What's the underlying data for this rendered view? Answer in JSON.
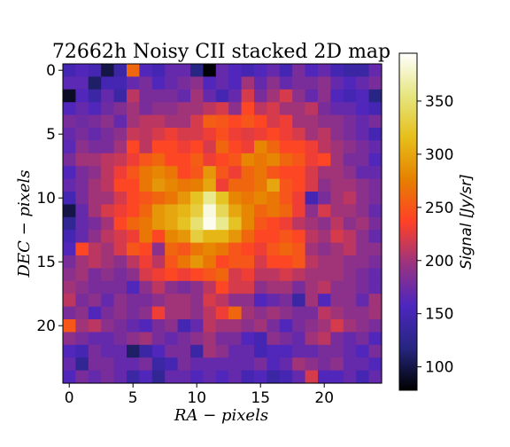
{
  "chart_data": {
    "type": "heatmap",
    "title": "72662h Noisy CII stacked 2D map",
    "xlabel": "RA − pixels",
    "ylabel": "DEC − pixels",
    "colorbar_label": "Signal [Jy/sr]",
    "colormap": "CMRmap",
    "grid": false,
    "nx": 25,
    "ny": 25,
    "xticks": [
      0,
      5,
      10,
      15,
      20
    ],
    "yticks": [
      0,
      5,
      10,
      15,
      20
    ],
    "colorbar_range": [
      78,
      395
    ],
    "colorbar_ticks": [
      100,
      150,
      200,
      250,
      300,
      350
    ],
    "peak": {
      "x": 11.5,
      "y": 11.5,
      "value": 390
    },
    "values": [
      [
        150,
        160,
        150,
        100,
        140,
        260,
        160,
        150,
        170,
        170,
        120,
        80,
        170,
        160,
        150,
        160,
        170,
        150,
        180,
        160,
        170,
        150,
        140,
        140,
        170
      ],
      [
        165,
        165,
        110,
        150,
        150,
        170,
        180,
        160,
        170,
        180,
        190,
        160,
        170,
        160,
        200,
        170,
        190,
        170,
        180,
        180,
        190,
        170,
        160,
        170,
        180
      ],
      [
        90,
        160,
        140,
        170,
        140,
        210,
        180,
        180,
        180,
        170,
        200,
        170,
        150,
        170,
        220,
        180,
        200,
        220,
        190,
        170,
        190,
        160,
        150,
        160,
        120
      ],
      [
        160,
        170,
        160,
        175,
        185,
        200,
        180,
        190,
        190,
        200,
        200,
        210,
        220,
        190,
        240,
        210,
        220,
        200,
        200,
        210,
        180,
        170,
        170,
        160,
        150
      ],
      [
        180,
        175,
        180,
        190,
        170,
        200,
        210,
        210,
        200,
        200,
        220,
        255,
        250,
        240,
        250,
        240,
        220,
        230,
        200,
        200,
        190,
        190,
        180,
        170,
        180
      ],
      [
        170,
        180,
        170,
        180,
        190,
        215,
        210,
        220,
        230,
        220,
        220,
        230,
        245,
        230,
        225,
        230,
        240,
        230,
        220,
        200,
        210,
        190,
        180,
        170,
        150
      ],
      [
        165,
        190,
        180,
        180,
        200,
        240,
        210,
        240,
        240,
        230,
        240,
        220,
        260,
        240,
        230,
        280,
        260,
        240,
        240,
        230,
        210,
        200,
        190,
        180,
        170
      ],
      [
        180,
        200,
        200,
        210,
        215,
        230,
        250,
        260,
        240,
        240,
        255,
        230,
        240,
        250,
        280,
        270,
        280,
        260,
        250,
        230,
        240,
        200,
        180,
        180,
        160
      ],
      [
        160,
        180,
        190,
        210,
        230,
        250,
        270,
        280,
        270,
        240,
        250,
        290,
        250,
        230,
        260,
        270,
        250,
        240,
        240,
        220,
        200,
        200,
        190,
        170,
        170
      ],
      [
        170,
        180,
        200,
        210,
        240,
        240,
        270,
        290,
        280,
        270,
        275,
        300,
        230,
        260,
        260,
        270,
        300,
        250,
        240,
        220,
        190,
        200,
        200,
        190,
        180
      ],
      [
        150,
        180,
        200,
        200,
        220,
        240,
        250,
        260,
        270,
        290,
        320,
        360,
        320,
        280,
        270,
        280,
        270,
        250,
        230,
        150,
        180,
        200,
        210,
        190,
        180
      ],
      [
        100,
        170,
        200,
        220,
        230,
        240,
        260,
        290,
        300,
        310,
        330,
        385,
        340,
        300,
        280,
        260,
        270,
        260,
        230,
        190,
        220,
        200,
        200,
        190,
        170
      ],
      [
        130,
        170,
        180,
        200,
        240,
        260,
        270,
        290,
        300,
        320,
        350,
        390,
        360,
        320,
        280,
        250,
        240,
        230,
        210,
        200,
        190,
        210,
        190,
        200,
        180
      ],
      [
        150,
        170,
        190,
        210,
        220,
        230,
        270,
        240,
        280,
        290,
        330,
        310,
        310,
        290,
        260,
        240,
        240,
        250,
        240,
        210,
        200,
        220,
        210,
        190,
        170
      ],
      [
        160,
        240,
        210,
        200,
        220,
        250,
        240,
        190,
        260,
        250,
        270,
        280,
        270,
        250,
        240,
        230,
        250,
        260,
        250,
        200,
        190,
        200,
        210,
        190,
        190
      ],
      [
        180,
        200,
        210,
        200,
        190,
        210,
        230,
        210,
        250,
        270,
        290,
        270,
        240,
        250,
        250,
        220,
        240,
        240,
        250,
        210,
        200,
        200,
        190,
        190,
        180
      ],
      [
        190,
        200,
        180,
        190,
        180,
        190,
        220,
        230,
        240,
        230,
        240,
        250,
        260,
        220,
        230,
        210,
        210,
        220,
        210,
        200,
        200,
        200,
        190,
        180,
        170
      ],
      [
        200,
        190,
        180,
        180,
        180,
        160,
        190,
        210,
        190,
        180,
        190,
        210,
        240,
        220,
        220,
        190,
        200,
        200,
        180,
        200,
        210,
        190,
        190,
        180,
        170
      ],
      [
        210,
        180,
        190,
        170,
        190,
        180,
        180,
        190,
        200,
        200,
        190,
        220,
        210,
        190,
        190,
        160,
        170,
        180,
        140,
        200,
        160,
        190,
        190,
        170,
        200
      ],
      [
        180,
        190,
        160,
        180,
        190,
        180,
        190,
        230,
        200,
        200,
        190,
        210,
        230,
        260,
        200,
        190,
        200,
        190,
        180,
        180,
        210,
        200,
        190,
        190,
        200
      ],
      [
        250,
        200,
        210,
        190,
        180,
        170,
        160,
        180,
        190,
        150,
        170,
        210,
        200,
        200,
        190,
        200,
        180,
        160,
        180,
        190,
        200,
        220,
        200,
        190,
        180
      ],
      [
        190,
        180,
        170,
        170,
        180,
        190,
        200,
        180,
        170,
        180,
        190,
        200,
        180,
        180,
        160,
        150,
        190,
        180,
        170,
        200,
        210,
        180,
        170,
        180,
        160
      ],
      [
        160,
        150,
        180,
        170,
        170,
        110,
        140,
        160,
        180,
        180,
        140,
        200,
        190,
        170,
        170,
        150,
        160,
        160,
        170,
        170,
        180,
        180,
        170,
        160,
        180
      ],
      [
        170,
        130,
        180,
        180,
        170,
        170,
        180,
        140,
        150,
        180,
        170,
        170,
        170,
        170,
        170,
        180,
        160,
        170,
        200,
        190,
        180,
        190,
        170,
        170,
        160
      ],
      [
        160,
        180,
        170,
        180,
        170,
        140,
        160,
        130,
        170,
        170,
        160,
        170,
        160,
        170,
        150,
        160,
        140,
        150,
        170,
        220,
        160,
        160,
        170,
        150,
        170
      ]
    ]
  }
}
